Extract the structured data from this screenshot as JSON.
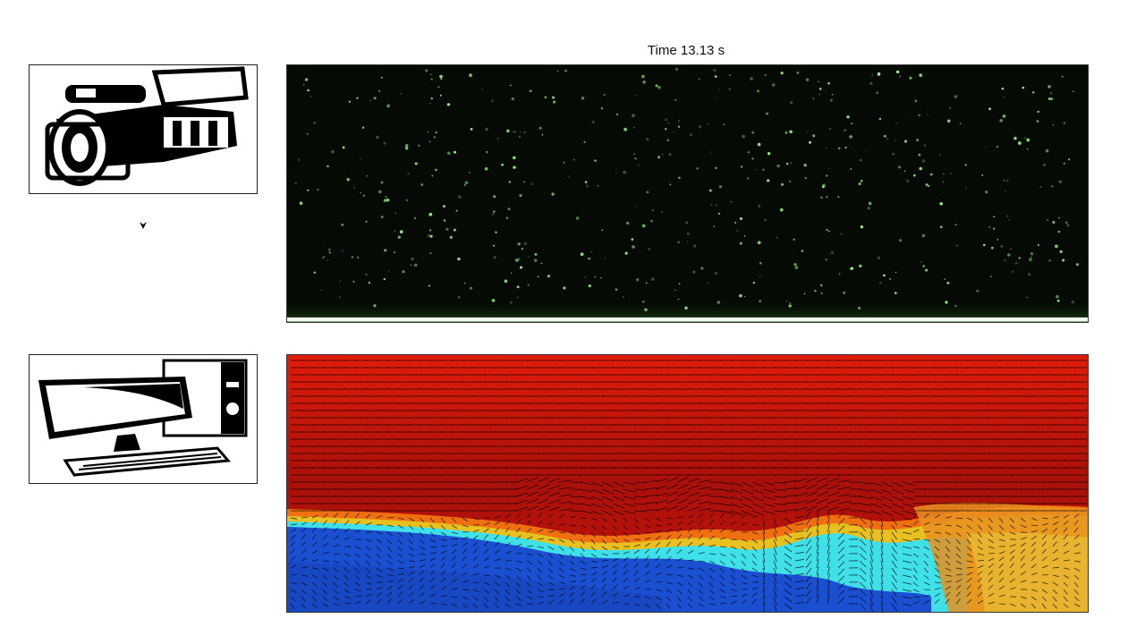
{
  "time_label": "Time 13.13 s",
  "icons": {
    "camera": "video-camera-icon",
    "computer": "desktop-computer-icon",
    "arrow": "arrow-down-icon"
  },
  "colors": {
    "particle_background": "#050a04",
    "particle_dot": "#9ef08a",
    "flow_fast": "#c81608",
    "flow_slow": "#1a4fd0",
    "flow_mid": "#40e0e8",
    "vector": "#000000"
  }
}
